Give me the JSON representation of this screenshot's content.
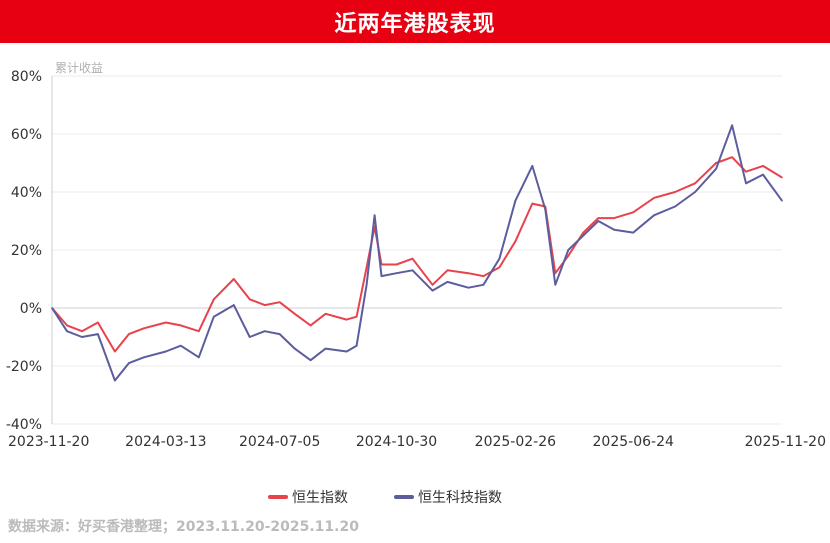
{
  "header": {
    "title": "近两年港股表现"
  },
  "chart_data": {
    "type": "line",
    "ylabel": "累计收益",
    "ylim": [
      -40,
      80
    ],
    "y_ticks": [
      "80%",
      "60%",
      "40%",
      "20%",
      "0%",
      "-20%",
      "-40%"
    ],
    "y_tick_values": [
      80,
      60,
      40,
      20,
      0,
      -20,
      -40
    ],
    "x_tick_labels": [
      "2023-11-20",
      "2024-03-13",
      "2024-07-05",
      "2024-10-30",
      "2025-02-26",
      "2025-06-24",
      "2025-11-20"
    ],
    "x_domain": [
      "2023-11-20",
      "2025-11-20"
    ],
    "grid": "horizontal",
    "legend": "bottom",
    "series": [
      {
        "name": "恒生指数",
        "color": "#e8434c",
        "points": [
          [
            "2023-11-20",
            0
          ],
          [
            "2023-12-05",
            -6
          ],
          [
            "2023-12-20",
            -8
          ],
          [
            "2024-01-05",
            -5
          ],
          [
            "2024-01-22",
            -15
          ],
          [
            "2024-02-05",
            -9
          ],
          [
            "2024-02-20",
            -7
          ],
          [
            "2024-03-13",
            -5
          ],
          [
            "2024-03-28",
            -6
          ],
          [
            "2024-04-15",
            -8
          ],
          [
            "2024-04-30",
            3
          ],
          [
            "2024-05-20",
            10
          ],
          [
            "2024-06-05",
            3
          ],
          [
            "2024-06-20",
            1
          ],
          [
            "2024-07-05",
            2
          ],
          [
            "2024-07-20",
            -2
          ],
          [
            "2024-08-05",
            -6
          ],
          [
            "2024-08-20",
            -2
          ],
          [
            "2024-09-10",
            -4
          ],
          [
            "2024-09-20",
            -3
          ],
          [
            "2024-09-30",
            14
          ],
          [
            "2024-10-08",
            28
          ],
          [
            "2024-10-15",
            15
          ],
          [
            "2024-10-30",
            15
          ],
          [
            "2024-11-15",
            17
          ],
          [
            "2024-12-05",
            8
          ],
          [
            "2024-12-20",
            13
          ],
          [
            "2025-01-10",
            12
          ],
          [
            "2025-01-25",
            11
          ],
          [
            "2025-02-10",
            14
          ],
          [
            "2025-02-26",
            23
          ],
          [
            "2025-03-15",
            36
          ],
          [
            "2025-03-28",
            35
          ],
          [
            "2025-04-07",
            12
          ],
          [
            "2025-04-20",
            18
          ],
          [
            "2025-05-05",
            26
          ],
          [
            "2025-05-20",
            31
          ],
          [
            "2025-06-05",
            31
          ],
          [
            "2025-06-24",
            33
          ],
          [
            "2025-07-15",
            38
          ],
          [
            "2025-08-05",
            40
          ],
          [
            "2025-08-25",
            43
          ],
          [
            "2025-09-15",
            50
          ],
          [
            "2025-10-01",
            52
          ],
          [
            "2025-10-15",
            47
          ],
          [
            "2025-11-01",
            49
          ],
          [
            "2025-11-20",
            45
          ]
        ]
      },
      {
        "name": "恒生科技指数",
        "color": "#5c5d9e",
        "points": [
          [
            "2023-11-20",
            0
          ],
          [
            "2023-12-05",
            -8
          ],
          [
            "2023-12-20",
            -10
          ],
          [
            "2024-01-05",
            -9
          ],
          [
            "2024-01-22",
            -25
          ],
          [
            "2024-02-05",
            -19
          ],
          [
            "2024-02-20",
            -17
          ],
          [
            "2024-03-13",
            -15
          ],
          [
            "2024-03-28",
            -13
          ],
          [
            "2024-04-15",
            -17
          ],
          [
            "2024-04-30",
            -3
          ],
          [
            "2024-05-20",
            1
          ],
          [
            "2024-06-05",
            -10
          ],
          [
            "2024-06-20",
            -8
          ],
          [
            "2024-07-05",
            -9
          ],
          [
            "2024-07-20",
            -14
          ],
          [
            "2024-08-05",
            -18
          ],
          [
            "2024-08-20",
            -14
          ],
          [
            "2024-09-10",
            -15
          ],
          [
            "2024-09-20",
            -13
          ],
          [
            "2024-09-30",
            8
          ],
          [
            "2024-10-08",
            32
          ],
          [
            "2024-10-15",
            11
          ],
          [
            "2024-10-30",
            12
          ],
          [
            "2024-11-15",
            13
          ],
          [
            "2024-12-05",
            6
          ],
          [
            "2024-12-20",
            9
          ],
          [
            "2025-01-10",
            7
          ],
          [
            "2025-01-25",
            8
          ],
          [
            "2025-02-10",
            17
          ],
          [
            "2025-02-26",
            37
          ],
          [
            "2025-03-15",
            49
          ],
          [
            "2025-03-28",
            34
          ],
          [
            "2025-04-07",
            8
          ],
          [
            "2025-04-20",
            20
          ],
          [
            "2025-05-05",
            25
          ],
          [
            "2025-05-20",
            30
          ],
          [
            "2025-06-05",
            27
          ],
          [
            "2025-06-24",
            26
          ],
          [
            "2025-07-15",
            32
          ],
          [
            "2025-08-05",
            35
          ],
          [
            "2025-08-25",
            40
          ],
          [
            "2025-09-15",
            48
          ],
          [
            "2025-10-01",
            63
          ],
          [
            "2025-10-15",
            43
          ],
          [
            "2025-11-01",
            46
          ],
          [
            "2025-11-20",
            37
          ]
        ]
      }
    ]
  },
  "footer": {
    "source": "数据来源：好买香港整理；2023.11.20-2025.11.20"
  }
}
